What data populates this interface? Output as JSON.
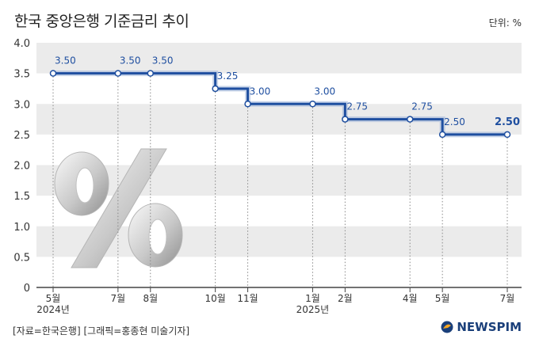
{
  "header": {
    "title": "한국 중앙은행 기준금리 추이",
    "unit": "단위: %"
  },
  "footer": {
    "source": "[자료=한국은행] [그래픽=홍종현 미술기자]",
    "logo": "NEWSPIM"
  },
  "colors": {
    "line": "#1f4fa0",
    "label": "#1f4fa0",
    "band": "#ebebeb",
    "axis": "#444444",
    "dotted": "#888888"
  },
  "decoration": {
    "icon": "percent-icon"
  },
  "chart_data": {
    "type": "line",
    "step": true,
    "ylim": [
      0,
      4.0
    ],
    "yticks": [
      "0",
      "0.5",
      "1.0",
      "1.5",
      "2.0",
      "2.5",
      "3.0",
      "3.5",
      "4.0"
    ],
    "grid": "alternating horizontal bands",
    "points": [
      {
        "x": "2024-05",
        "y": 3.5,
        "label": "3.50",
        "month": "5월",
        "year": "2024년"
      },
      {
        "x": "2024-07",
        "y": 3.5,
        "label": "3.50",
        "month": "7월"
      },
      {
        "x": "2024-08",
        "y": 3.5,
        "label": "3.50",
        "month": "8월"
      },
      {
        "x": "2024-10",
        "y": 3.25,
        "label": "3.25",
        "month": "10월"
      },
      {
        "x": "2024-11",
        "y": 3.0,
        "label": "3.00",
        "month": "11월"
      },
      {
        "x": "2025-01",
        "y": 3.0,
        "label": "3.00",
        "month": "1월",
        "year": "2025년"
      },
      {
        "x": "2025-02",
        "y": 2.75,
        "label": "2.75",
        "month": "2월"
      },
      {
        "x": "2025-04",
        "y": 2.75,
        "label": "2.75",
        "month": "4월"
      },
      {
        "x": "2025-05",
        "y": 2.5,
        "label": "2.50",
        "month": "5월"
      },
      {
        "x": "2025-07",
        "y": 2.5,
        "label": "2.50",
        "month": "7월",
        "highlight": true
      }
    ]
  }
}
